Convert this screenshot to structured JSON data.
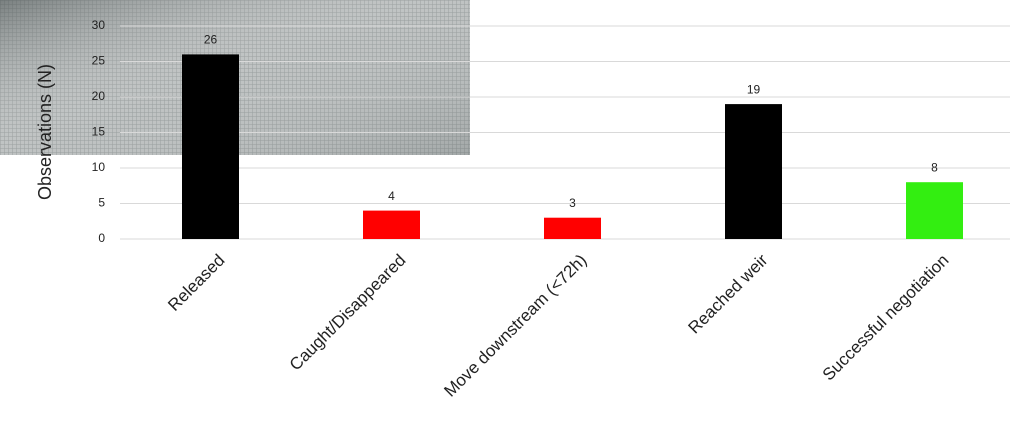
{
  "chart_data": {
    "type": "bar",
    "y_label": "Observations (N)",
    "categories": [
      "Released",
      "Caught/Disappeared",
      "Move downstream (<72h)",
      "Reached weir",
      "Successful negotiation"
    ],
    "values": [
      26,
      4,
      3,
      19,
      8
    ],
    "colors": [
      "#000000",
      "#ff0000",
      "#ff0000",
      "#000000",
      "#33ee11"
    ],
    "ylim": [
      0,
      30
    ],
    "yticks": [
      0,
      5,
      10,
      15,
      20,
      25,
      30
    ],
    "grid": true
  }
}
